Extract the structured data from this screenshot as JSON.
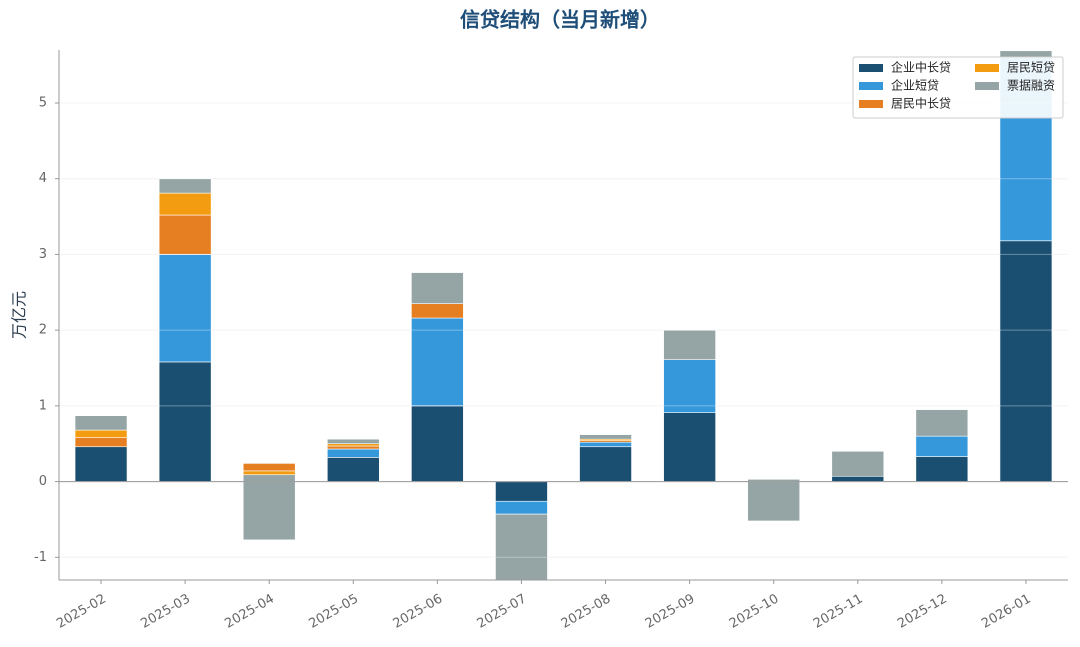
{
  "chart_data": {
    "type": "stacked_bar",
    "title": "信贷结构（当月新增）",
    "y_label": "万亿元",
    "categories": [
      "2025-02",
      "2025-03",
      "2025-04",
      "2025-05",
      "2025-06",
      "2025-07",
      "2025-08",
      "2025-09",
      "2025-10",
      "2025-11",
      "2025-12",
      "2026-01"
    ],
    "series": [
      {
        "name": "企业中长贷",
        "color": "#1b4f72",
        "values": [
          0.46,
          1.58,
          0,
          0.32,
          1.0,
          -0.26,
          0.46,
          0.91,
          0,
          0.07,
          0.33,
          3.18
        ]
      },
      {
        "name": "企业短贷",
        "color": "#3498db",
        "values": [
          0,
          1.42,
          0.24,
          0.11,
          1.16,
          -0.17,
          0.06,
          0.7,
          0.03,
          0,
          0.27,
          2.42
        ]
      },
      {
        "name": "居民中长贷",
        "color": "#e67e22",
        "values": [
          0.12,
          0.52,
          -0.1,
          0.04,
          0.19,
          0,
          0.02,
          0,
          0,
          0,
          0,
          0
        ]
      },
      {
        "name": "居民短贷",
        "color": "#f39c12",
        "values": [
          0.1,
          0.29,
          -0.05,
          0.03,
          0,
          0,
          0.02,
          0,
          0,
          0,
          0,
          0
        ]
      },
      {
        "name": "票据融资",
        "color": "#95a5a6",
        "values": [
          0.19,
          0.19,
          -0.86,
          0.06,
          0.41,
          -0.9,
          0.06,
          0.39,
          -0.55,
          0.33,
          0.35,
          0.09
        ]
      }
    ],
    "ylim": [
      -1.3,
      5.7
    ],
    "yticks": [
      -1,
      0,
      1,
      2,
      3,
      4,
      5
    ],
    "grid": true,
    "legend": "upper-right"
  }
}
